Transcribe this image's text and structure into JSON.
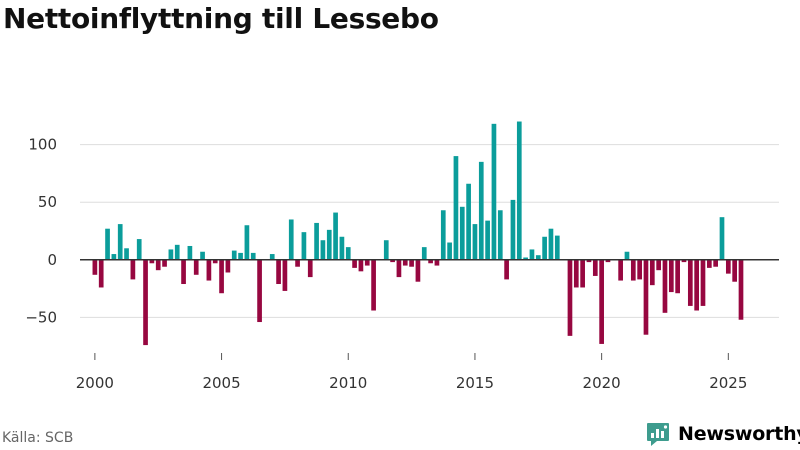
{
  "title": "Nettoinflyttning till Lessebo",
  "source": "Källa: SCB",
  "brand": {
    "name": "Newsworthy",
    "icon": "newsworthy-logo-icon",
    "color": "#3e9c8e"
  },
  "colors": {
    "positive": "#0b9d9b",
    "negative": "#970740",
    "grid": "#dddddd",
    "zero": "#333333"
  },
  "chart_data": {
    "type": "bar",
    "title": "Nettoinflyttning till Lessebo",
    "xlabel": "",
    "ylabel": "",
    "xlim": [
      1998.9,
      2027.0
    ],
    "ylim": [
      -80,
      130
    ],
    "x_ticks": [
      2000,
      2005,
      2010,
      2015,
      2020,
      2025
    ],
    "y_ticks": [
      -50,
      0,
      50,
      100
    ],
    "grid": true,
    "legend": "none",
    "start": 2000,
    "step": 0.25,
    "values": [
      -13,
      -24,
      27,
      5,
      31,
      10,
      -17,
      18,
      -74,
      -3,
      -9,
      -6,
      9,
      13,
      -21,
      12,
      -13,
      7,
      -18,
      -3,
      -29,
      -11,
      8,
      6,
      30,
      6,
      -54,
      0,
      5,
      -21,
      -27,
      35,
      -6,
      24,
      -15,
      32,
      17,
      26,
      41,
      20,
      11,
      -7,
      -10,
      -5,
      -44,
      0,
      17,
      -2,
      -15,
      -5,
      -6,
      -19,
      11,
      -3,
      -5,
      43,
      15,
      90,
      46,
      66,
      31,
      85,
      34,
      118,
      43,
      -17,
      52,
      120,
      2,
      9,
      4,
      20,
      27,
      21,
      0,
      -66,
      -24,
      -24,
      -2,
      -14,
      -73,
      -2,
      0,
      -18,
      7,
      -18,
      -17,
      -65,
      -22,
      -9,
      -46,
      -28,
      -29,
      -2,
      -40,
      -44,
      -40,
      -7,
      -6,
      37,
      -12,
      -19,
      -52
    ]
  }
}
